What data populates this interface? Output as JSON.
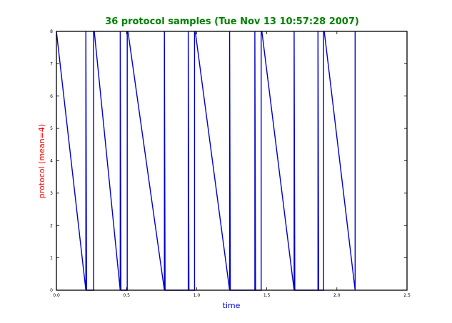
{
  "colors": {
    "title": "#008000",
    "xlabel": "#0000cc",
    "ylabel": "#ff0000",
    "series": "#0000cc",
    "axes": "#000000"
  },
  "chart_data": {
    "type": "line",
    "title": "36 protocol samples (Tue Nov 13 10:57:28 2007)",
    "xlabel": "time",
    "ylabel": "protocol (mean=4)",
    "xlim": [
      0.0,
      2.5
    ],
    "ylim": [
      0,
      8
    ],
    "xticks": [
      "0.0",
      "0.5",
      "1.0",
      "1.5",
      "2.0",
      "2.5"
    ],
    "yticks": [
      "0",
      "1",
      "2",
      "3",
      "4",
      "5",
      "6",
      "7",
      "8"
    ],
    "grid": false,
    "legend": "none",
    "series": [
      {
        "x": [
          0.0,
          0.21,
          0.21,
          0.215,
          0.265,
          0.265,
          0.27,
          0.455,
          0.455,
          0.46,
          0.505,
          0.505,
          0.51,
          0.77,
          0.77,
          0.775,
          0.94,
          0.94,
          0.945,
          0.985,
          0.985,
          0.99,
          1.235,
          1.235,
          1.24,
          1.415,
          1.415,
          1.42,
          1.46,
          1.46,
          1.465,
          1.695,
          1.695,
          1.7,
          1.865,
          1.865,
          1.87,
          1.905,
          1.905,
          1.91,
          2.13,
          2.13
        ],
        "y": [
          8,
          0,
          8,
          0,
          0,
          8,
          8,
          0,
          8,
          0,
          0,
          8,
          8,
          0,
          8,
          0,
          0,
          8,
          0,
          0,
          8,
          8,
          0,
          8,
          0,
          0,
          8,
          0,
          0,
          8,
          8,
          0,
          8,
          0,
          0,
          8,
          0,
          0,
          8,
          8,
          0,
          8
        ]
      }
    ]
  }
}
